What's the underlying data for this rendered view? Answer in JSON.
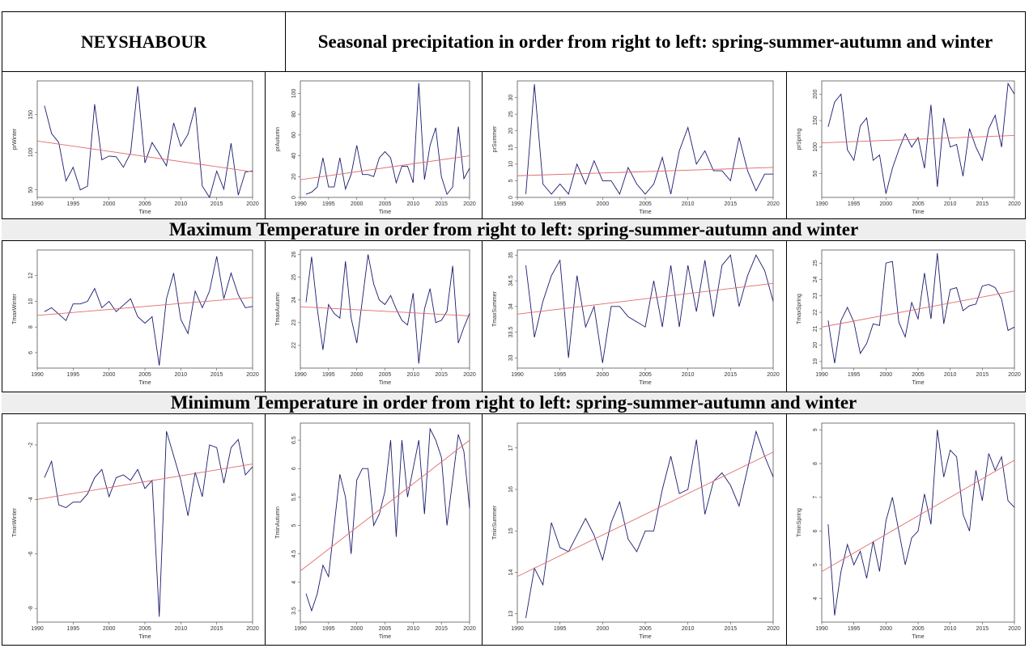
{
  "header": {
    "station": "NEYSHABOUR",
    "precip_title": "Seasonal precipitation in order from right to left: spring-summer-autumn and winter",
    "tmax_title": "Maximum Temperature in order from right to left: spring-summer-autumn and winter",
    "tmin_title": "Minimum Temperature in order from right to left: spring-summer-autumn and winter"
  },
  "colors": {
    "series": "#1b1b6e",
    "trend": "#e26a6a",
    "band_bg": "#eeeeee"
  },
  "chart_data": [
    {
      "type": "line",
      "row": 0,
      "col": 0,
      "xlabel": "Time",
      "ylabel": "prWinter",
      "x": [
        1991,
        1992,
        1993,
        1994,
        1995,
        1996,
        1997,
        1998,
        1999,
        2000,
        2001,
        2002,
        2003,
        2004,
        2005,
        2006,
        2007,
        2008,
        2009,
        2010,
        2011,
        2012,
        2013,
        2014,
        2015,
        2016,
        2017,
        2018,
        2019,
        2020
      ],
      "values": [
        162,
        125,
        113,
        62,
        80,
        50,
        55,
        164,
        90,
        95,
        94,
        80,
        99,
        188,
        86,
        113,
        98,
        82,
        139,
        108,
        124,
        160,
        55,
        40,
        75,
        51,
        112,
        43,
        74,
        75
      ],
      "xlim": [
        1990,
        2020
      ],
      "ylim": [
        40,
        195
      ],
      "yticks": [
        50,
        100,
        150
      ],
      "xticks": [
        1990,
        1995,
        2000,
        2005,
        2010,
        2015,
        2020
      ],
      "trend": [
        115,
        74
      ]
    },
    {
      "type": "line",
      "row": 0,
      "col": 1,
      "xlabel": "Time",
      "ylabel": "prAutumn",
      "x": [
        1991,
        1992,
        1993,
        1994,
        1995,
        1996,
        1997,
        1998,
        1999,
        2000,
        2001,
        2002,
        2003,
        2004,
        2005,
        2006,
        2007,
        2008,
        2009,
        2010,
        2011,
        2012,
        2013,
        2014,
        2015,
        2016,
        2017,
        2018,
        2019,
        2020
      ],
      "values": [
        3,
        5,
        10,
        38,
        10,
        10,
        38,
        8,
        22,
        50,
        22,
        22,
        20,
        38,
        44,
        38,
        14,
        30,
        30,
        14,
        110,
        17,
        50,
        67,
        20,
        3,
        10,
        68,
        18,
        28
      ],
      "xlim": [
        1990,
        2020
      ],
      "ylim": [
        0,
        112
      ],
      "yticks": [
        0,
        20,
        40,
        60,
        80,
        100
      ],
      "xticks": [
        1990,
        1995,
        2000,
        2005,
        2010,
        2015,
        2020
      ],
      "trend": [
        17,
        40
      ]
    },
    {
      "type": "line",
      "row": 0,
      "col": 2,
      "xlabel": "Time",
      "ylabel": "prSummer",
      "x": [
        1991,
        1992,
        1993,
        1994,
        1995,
        1996,
        1997,
        1998,
        1999,
        2000,
        2001,
        2002,
        2003,
        2004,
        2005,
        2006,
        2007,
        2008,
        2009,
        2010,
        2011,
        2012,
        2013,
        2014,
        2015,
        2016,
        2017,
        2018,
        2019,
        2020
      ],
      "values": [
        1,
        34,
        4,
        1,
        4,
        1,
        10,
        4,
        11,
        5,
        5,
        1,
        9,
        4,
        1,
        4,
        12,
        1,
        14,
        21,
        10,
        14,
        8,
        8,
        5,
        18,
        8,
        2,
        7,
        7
      ],
      "xlim": [
        1990,
        2020
      ],
      "ylim": [
        0,
        35
      ],
      "yticks": [
        0,
        5,
        10,
        15,
        20,
        25,
        30
      ],
      "xticks": [
        1990,
        1995,
        2000,
        2005,
        2010,
        2015,
        2020
      ],
      "trend": [
        6.5,
        9
      ]
    },
    {
      "type": "line",
      "row": 0,
      "col": 3,
      "xlabel": "Time",
      "ylabel": "prSpring",
      "x": [
        1991,
        1992,
        1993,
        1994,
        1995,
        1996,
        1997,
        1998,
        1999,
        2000,
        2001,
        2002,
        2003,
        2004,
        2005,
        2006,
        2007,
        2008,
        2009,
        2010,
        2011,
        2012,
        2013,
        2014,
        2015,
        2016,
        2017,
        2018,
        2019,
        2020
      ],
      "values": [
        138,
        185,
        200,
        95,
        75,
        140,
        155,
        75,
        85,
        12,
        60,
        95,
        125,
        100,
        118,
        60,
        180,
        25,
        155,
        100,
        105,
        45,
        135,
        100,
        75,
        135,
        160,
        100,
        220,
        200
      ],
      "xlim": [
        1990,
        2020
      ],
      "ylim": [
        5,
        225
      ],
      "yticks": [
        50,
        100,
        150,
        200
      ],
      "xticks": [
        1990,
        1995,
        2000,
        2005,
        2010,
        2015,
        2020
      ],
      "trend": [
        108,
        122
      ]
    },
    {
      "type": "line",
      "row": 1,
      "col": 0,
      "xlabel": "Time",
      "ylabel": "TmaxWinter",
      "x": [
        1991,
        1992,
        1993,
        1994,
        1995,
        1996,
        1997,
        1998,
        1999,
        2000,
        2001,
        2002,
        2003,
        2004,
        2005,
        2006,
        2007,
        2008,
        2009,
        2010,
        2011,
        2012,
        2013,
        2014,
        2015,
        2016,
        2017,
        2018,
        2019,
        2020
      ],
      "values": [
        9.2,
        9.5,
        9.0,
        8.5,
        9.8,
        9.8,
        10.0,
        11.0,
        9.5,
        10.0,
        9.2,
        9.7,
        10.2,
        8.8,
        8.3,
        8.8,
        5.0,
        10.2,
        12.2,
        8.6,
        7.5,
        10.8,
        9.5,
        10.8,
        13.5,
        10.2,
        12.2,
        10.5,
        9.5,
        9.6
      ],
      "xlim": [
        1990,
        2020
      ],
      "ylim": [
        4.8,
        14
      ],
      "yticks": [
        6,
        8,
        10,
        12
      ],
      "xticks": [
        1990,
        1995,
        2000,
        2005,
        2010,
        2015,
        2020
      ],
      "trend": [
        8.9,
        10.3
      ]
    },
    {
      "type": "line",
      "row": 1,
      "col": 1,
      "xlabel": "Time",
      "ylabel": "TmaxAutumn",
      "x": [
        1991,
        1992,
        1993,
        1994,
        1995,
        1996,
        1997,
        1998,
        1999,
        2000,
        2001,
        2002,
        2003,
        2004,
        2005,
        2006,
        2007,
        2008,
        2009,
        2010,
        2011,
        2012,
        2013,
        2014,
        2015,
        2016,
        2017,
        2018,
        2019,
        2020
      ],
      "values": [
        23.9,
        25.9,
        23.6,
        21.8,
        23.8,
        23.4,
        23.2,
        25.7,
        23.2,
        22.1,
        24.0,
        26.0,
        24.7,
        24.0,
        23.8,
        24.2,
        23.6,
        23.1,
        22.9,
        24.3,
        21.2,
        23.6,
        24.5,
        23.0,
        23.1,
        23.5,
        25.5,
        22.1,
        22.8,
        23.4
      ],
      "xlim": [
        1990,
        2020
      ],
      "ylim": [
        21.0,
        26.2
      ],
      "yticks": [
        22,
        23,
        24,
        25,
        26
      ],
      "xticks": [
        1990,
        1995,
        2000,
        2005,
        2010,
        2015,
        2020
      ],
      "trend": [
        23.7,
        23.3
      ]
    },
    {
      "type": "line",
      "row": 1,
      "col": 2,
      "xlabel": "Time",
      "ylabel": "TmaxSummer",
      "x": [
        1991,
        1992,
        1993,
        1994,
        1995,
        1996,
        1997,
        1998,
        1999,
        2000,
        2001,
        2002,
        2003,
        2004,
        2005,
        2006,
        2007,
        2008,
        2009,
        2010,
        2011,
        2012,
        2013,
        2014,
        2015,
        2016,
        2017,
        2018,
        2019,
        2020
      ],
      "values": [
        34.8,
        33.4,
        34.1,
        34.6,
        34.9,
        33.0,
        34.6,
        33.6,
        34.0,
        32.9,
        34.0,
        34.0,
        33.8,
        33.7,
        33.6,
        34.5,
        33.6,
        34.8,
        33.6,
        34.8,
        33.9,
        34.9,
        33.8,
        34.8,
        35.0,
        34.0,
        34.6,
        35.0,
        34.7,
        34.1
      ],
      "xlim": [
        1990,
        2020
      ],
      "ylim": [
        32.8,
        35.1
      ],
      "yticks": [
        33.0,
        33.5,
        34.0,
        34.5,
        35.0
      ],
      "xticks": [
        1990,
        1995,
        2000,
        2005,
        2010,
        2015,
        2020
      ],
      "trend": [
        33.85,
        34.45
      ]
    },
    {
      "type": "line",
      "row": 1,
      "col": 3,
      "xlabel": "Time",
      "ylabel": "TmaxSpring",
      "x": [
        1991,
        1992,
        1993,
        1994,
        1995,
        1996,
        1997,
        1998,
        1999,
        2000,
        2001,
        2002,
        2003,
        2004,
        2005,
        2006,
        2007,
        2008,
        2009,
        2010,
        2011,
        2012,
        2013,
        2014,
        2015,
        2016,
        2017,
        2018,
        2019,
        2020
      ],
      "values": [
        21.5,
        18.9,
        21.5,
        22.3,
        21.4,
        19.5,
        20.1,
        21.3,
        21.2,
        25.0,
        25.1,
        21.4,
        20.5,
        22.6,
        21.6,
        24.4,
        21.6,
        25.6,
        21.3,
        23.4,
        23.5,
        22.1,
        22.4,
        22.5,
        23.6,
        23.7,
        23.5,
        22.8,
        20.9,
        21.1
      ],
      "xlim": [
        1990,
        2020
      ],
      "ylim": [
        18.6,
        25.8
      ],
      "yticks": [
        19,
        20,
        21,
        22,
        23,
        24,
        25
      ],
      "xticks": [
        1990,
        1995,
        2000,
        2005,
        2010,
        2015,
        2020
      ],
      "trend": [
        21.1,
        23.3
      ]
    },
    {
      "type": "line",
      "row": 2,
      "col": 0,
      "xlabel": "Time",
      "ylabel": "TminWinter",
      "x": [
        1991,
        1992,
        1993,
        1994,
        1995,
        1996,
        1997,
        1998,
        1999,
        2000,
        2001,
        2002,
        2003,
        2004,
        2005,
        2006,
        2007,
        2008,
        2009,
        2010,
        2011,
        2012,
        2013,
        2014,
        2015,
        2016,
        2017,
        2018,
        2019,
        2020
      ],
      "values": [
        -3.2,
        -2.6,
        -4.2,
        -4.3,
        -4.1,
        -4.1,
        -3.8,
        -3.2,
        -2.9,
        -3.9,
        -3.2,
        -3.1,
        -3.3,
        -2.9,
        -3.6,
        -3.3,
        -8.3,
        -1.5,
        -2.4,
        -3.3,
        -4.6,
        -3.0,
        -3.9,
        -2.0,
        -2.1,
        -3.4,
        -2.1,
        -1.8,
        -3.1,
        -2.8
      ],
      "xlim": [
        1990,
        2020
      ],
      "ylim": [
        -8.5,
        -1.2
      ],
      "yticks": [
        -8,
        -6,
        -4,
        -2
      ],
      "xticks": [
        1990,
        1995,
        2000,
        2005,
        2010,
        2015,
        2020
      ],
      "trend": [
        -4.0,
        -2.7
      ]
    },
    {
      "type": "line",
      "row": 2,
      "col": 1,
      "xlabel": "Time",
      "ylabel": "TminAutumn",
      "x": [
        1991,
        1992,
        1993,
        1994,
        1995,
        1996,
        1997,
        1998,
        1999,
        2000,
        2001,
        2002,
        2003,
        2004,
        2005,
        2006,
        2007,
        2008,
        2009,
        2010,
        2011,
        2012,
        2013,
        2014,
        2015,
        2016,
        2017,
        2018,
        2019,
        2020
      ],
      "values": [
        3.8,
        3.5,
        3.8,
        4.3,
        4.1,
        5.0,
        5.9,
        5.5,
        4.5,
        5.8,
        6.0,
        6.0,
        5.0,
        5.2,
        5.6,
        6.5,
        4.8,
        6.5,
        5.5,
        6.0,
        6.5,
        5.2,
        6.7,
        6.5,
        6.2,
        5.0,
        5.8,
        6.6,
        6.3,
        5.3
      ],
      "xlim": [
        1990,
        2020
      ],
      "ylim": [
        3.3,
        6.8
      ],
      "yticks": [
        3.5,
        4.0,
        4.5,
        5.0,
        5.5,
        6.0,
        6.5
      ],
      "xticks": [
        1990,
        1995,
        2000,
        2005,
        2010,
        2015,
        2020
      ],
      "trend": [
        4.2,
        6.5
      ]
    },
    {
      "type": "line",
      "row": 2,
      "col": 2,
      "xlabel": "Time",
      "ylabel": "TminSummer",
      "x": [
        1991,
        1992,
        1993,
        1994,
        1995,
        1996,
        1997,
        1998,
        1999,
        2000,
        2001,
        2002,
        2003,
        2004,
        2005,
        2006,
        2007,
        2008,
        2009,
        2010,
        2011,
        2012,
        2013,
        2014,
        2015,
        2016,
        2017,
        2018,
        2019,
        2020
      ],
      "values": [
        12.9,
        14.1,
        13.7,
        15.2,
        14.6,
        14.5,
        14.9,
        15.3,
        14.9,
        14.3,
        15.2,
        15.7,
        14.8,
        14.5,
        15.0,
        15.0,
        16.0,
        16.8,
        15.9,
        16.0,
        17.2,
        15.4,
        16.2,
        16.4,
        16.1,
        15.6,
        16.5,
        17.4,
        16.8,
        16.3
      ],
      "xlim": [
        1990,
        2020
      ],
      "ylim": [
        12.8,
        17.6
      ],
      "yticks": [
        13,
        14,
        15,
        16,
        17
      ],
      "xticks": [
        1990,
        1995,
        2000,
        2005,
        2010,
        2015,
        2020
      ],
      "trend": [
        13.9,
        16.9
      ]
    },
    {
      "type": "line",
      "row": 2,
      "col": 3,
      "xlabel": "Time",
      "ylabel": "TminSpring",
      "x": [
        1991,
        1992,
        1993,
        1994,
        1995,
        1996,
        1997,
        1998,
        1999,
        2000,
        2001,
        2002,
        2003,
        2004,
        2005,
        2006,
        2007,
        2008,
        2009,
        2010,
        2011,
        2012,
        2013,
        2014,
        2015,
        2016,
        2017,
        2018,
        2019,
        2020
      ],
      "values": [
        6.2,
        3.5,
        4.8,
        5.6,
        5.0,
        5.4,
        4.6,
        5.7,
        4.8,
        6.3,
        7.0,
        6.0,
        5.0,
        5.8,
        6.0,
        7.1,
        6.2,
        9.0,
        7.6,
        8.4,
        8.2,
        6.5,
        6.0,
        7.8,
        6.9,
        8.3,
        7.8,
        8.2,
        6.9,
        6.7
      ],
      "xlim": [
        1990,
        2020
      ],
      "ylim": [
        3.3,
        9.2
      ],
      "yticks": [
        4,
        5,
        6,
        7,
        8,
        9
      ],
      "xticks": [
        1990,
        1995,
        2000,
        2005,
        2010,
        2015,
        2020
      ],
      "trend": [
        4.8,
        8.1
      ]
    }
  ]
}
